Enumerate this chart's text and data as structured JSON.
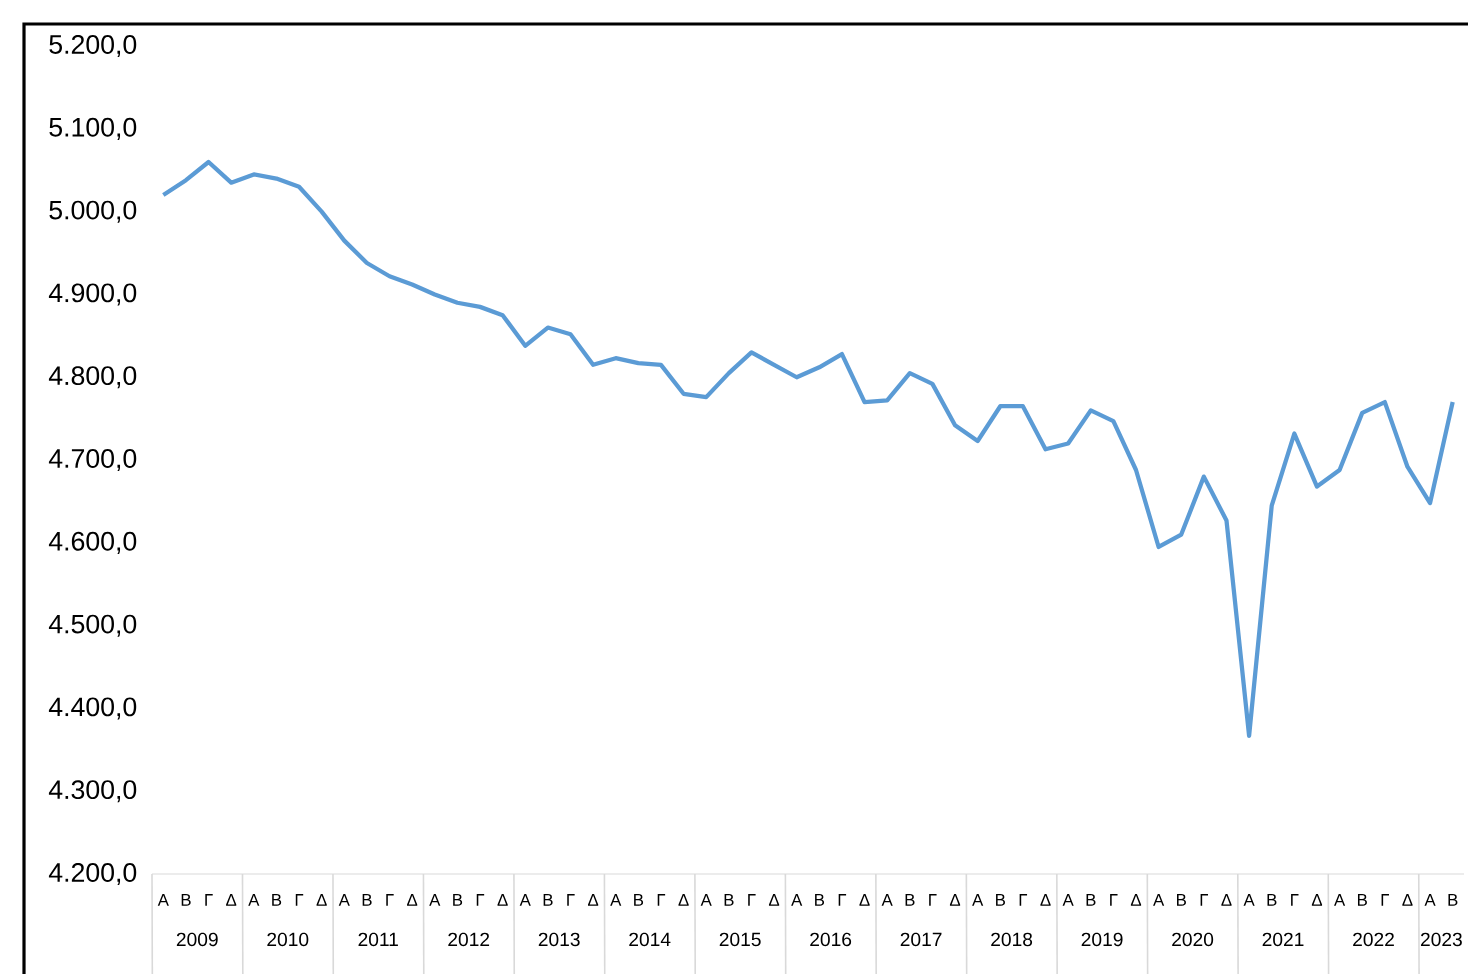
{
  "chart_data": {
    "type": "line",
    "categories": [
      "Α",
      "Β",
      "Γ",
      "Δ",
      "Α",
      "Β",
      "Γ",
      "Δ",
      "Α",
      "Β",
      "Γ",
      "Δ",
      "Α",
      "Β",
      "Γ",
      "Δ",
      "Α",
      "Β",
      "Γ",
      "Δ",
      "Α",
      "Β",
      "Γ",
      "Δ",
      "Α",
      "Β",
      "Γ",
      "Δ",
      "Α",
      "Β",
      "Γ",
      "Δ",
      "Α",
      "Β",
      "Γ",
      "Δ",
      "Α",
      "Β",
      "Γ",
      "Δ",
      "Α",
      "Β",
      "Γ",
      "Δ",
      "Α",
      "Β",
      "Γ",
      "Δ",
      "Α",
      "Β",
      "Γ",
      "Δ",
      "Α",
      "Β",
      "Γ",
      "Δ",
      "Α",
      "Β"
    ],
    "series": [
      {
        "color": "#5b9bd5",
        "values": [
          5020,
          5038,
          5060,
          5035,
          5045,
          5040,
          5030,
          5000,
          4965,
          4938,
          4922,
          4912,
          4900,
          4890,
          4885,
          4875,
          4838,
          4860,
          4852,
          4815,
          4823,
          4817,
          4815,
          4780,
          4776,
          4805,
          4830,
          4815,
          4800,
          4812,
          4828,
          4770,
          4772,
          4805,
          4792,
          4742,
          4723,
          4765,
          4765,
          4713,
          4720,
          4760,
          4747,
          4688,
          4595,
          4610,
          4680,
          4627,
          4367,
          4645,
          4732,
          4668,
          4688,
          4757,
          4770,
          4692,
          4648,
          4770
        ]
      }
    ],
    "annotations": [
      "2009",
      "2010",
      "2011",
      "2012",
      "2013",
      "2014",
      "2015",
      "2016",
      "2017",
      "2018",
      "2019",
      "2020",
      "2021",
      "2022",
      "2023"
    ],
    "ylim": [
      4200,
      5200
    ],
    "yticks": [
      {
        "value": 4200,
        "label": "4.200,0"
      },
      {
        "value": 4300,
        "label": "4.300,0"
      },
      {
        "value": 4400,
        "label": "4.400,0"
      },
      {
        "value": 4500,
        "label": "4.500,0"
      },
      {
        "value": 4600,
        "label": "4.600,0"
      },
      {
        "value": 4700,
        "label": "4.700,0"
      },
      {
        "value": 4800,
        "label": "4.800,0"
      },
      {
        "value": 4900,
        "label": "4.900,0"
      },
      {
        "value": 5000,
        "label": "5.000,0"
      },
      {
        "value": 5100,
        "label": "5.100,0"
      },
      {
        "value": 5200,
        "label": "5.200,0"
      }
    ],
    "grid": false,
    "legend": false,
    "marker": "none",
    "line_style": "solid"
  }
}
